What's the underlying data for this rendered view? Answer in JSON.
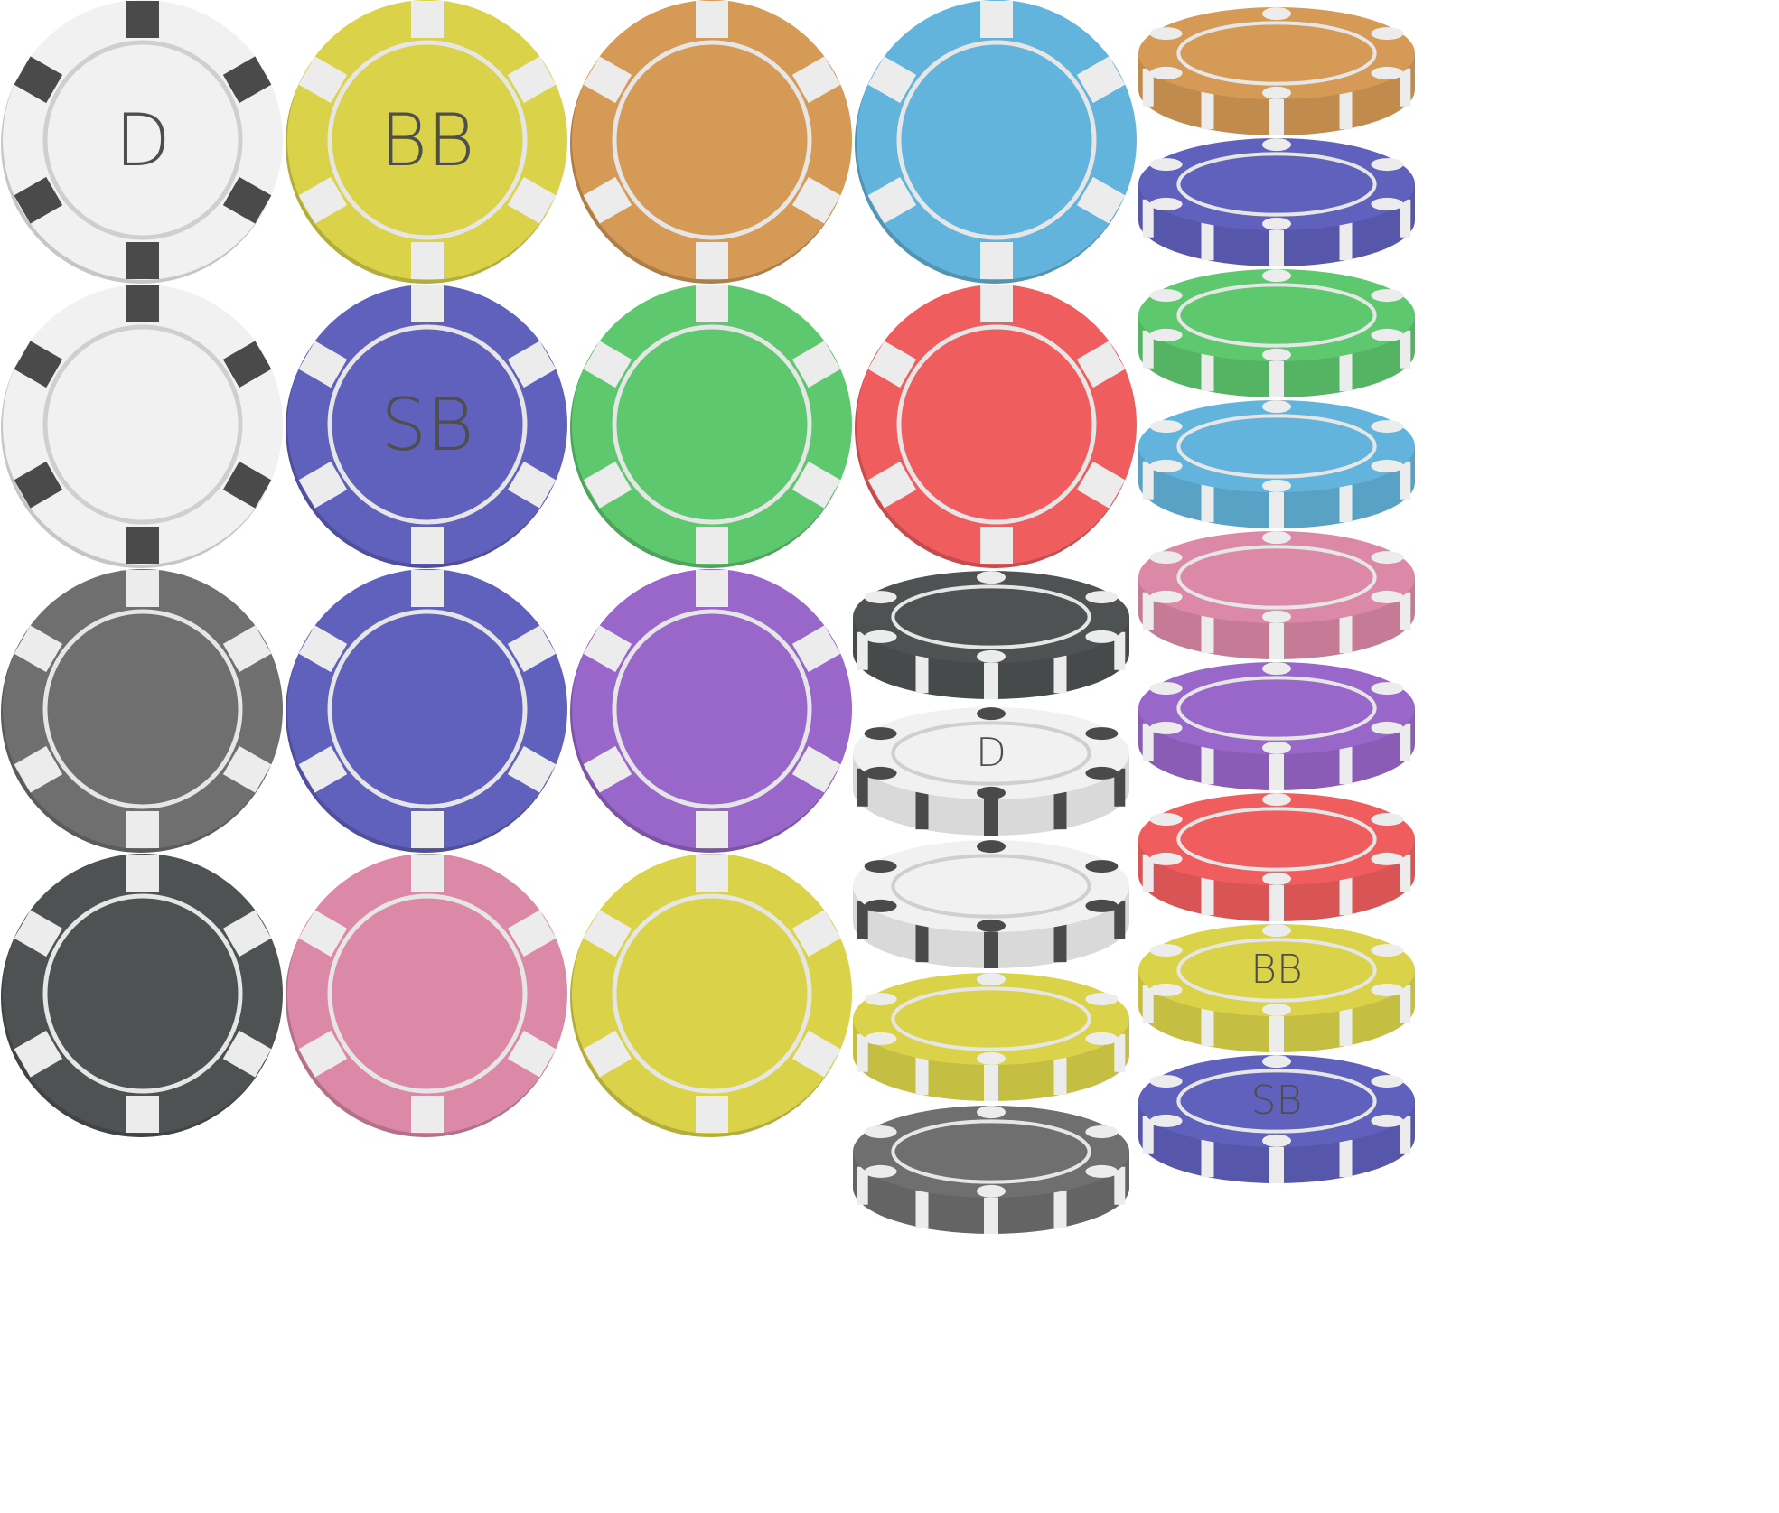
{
  "palette": {
    "white": "#f1f1f1",
    "yellow": "#dad34a",
    "orange": "#d59a55",
    "blue": "#63b4dc",
    "purple_blue": "#6060bd",
    "green": "#5ec86e",
    "red": "#f05d5e",
    "gray": "#6f6f6f",
    "dark": "#4f5253",
    "violet": "#9966c9",
    "pink": "#db89a6",
    "stripe_light": "#ececec",
    "stripe_dark": "#4a4a4a"
  },
  "flat_chips": [
    {
      "color": "white",
      "label": "D"
    },
    {
      "color": "yellow",
      "label": "BB"
    },
    {
      "color": "orange",
      "label": ""
    },
    {
      "color": "blue",
      "label": ""
    },
    {
      "color": "white",
      "label": ""
    },
    {
      "color": "purple_blue",
      "label": "SB"
    },
    {
      "color": "green",
      "label": ""
    },
    {
      "color": "red",
      "label": ""
    },
    {
      "color": "gray",
      "label": ""
    },
    {
      "color": "purple_blue",
      "label": ""
    },
    {
      "color": "violet",
      "label": ""
    },
    {
      "color": "dark",
      "label": ""
    },
    {
      "color": "pink",
      "label": ""
    },
    {
      "color": "yellow",
      "label": ""
    }
  ],
  "stack_column_1": [
    {
      "color": "dark",
      "label": ""
    },
    {
      "color": "white",
      "label": "D"
    },
    {
      "color": "white",
      "label": ""
    },
    {
      "color": "yellow",
      "label": ""
    },
    {
      "color": "gray",
      "label": ""
    }
  ],
  "stack_column_2": [
    {
      "color": "orange",
      "label": ""
    },
    {
      "color": "purple_blue",
      "label": ""
    },
    {
      "color": "green",
      "label": ""
    },
    {
      "color": "blue",
      "label": ""
    },
    {
      "color": "pink",
      "label": ""
    },
    {
      "color": "violet",
      "label": ""
    },
    {
      "color": "red",
      "label": ""
    },
    {
      "color": "yellow",
      "label": "BB"
    },
    {
      "color": "purple_blue",
      "label": "SB"
    }
  ]
}
